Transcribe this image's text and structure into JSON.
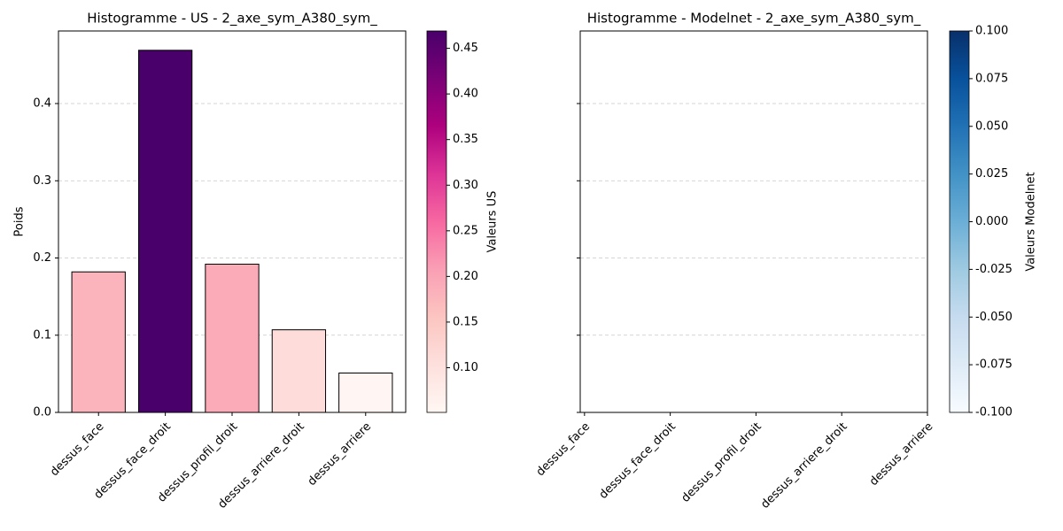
{
  "chart_data": [
    {
      "type": "bar",
      "title": "Histogramme - US - 2_axe_sym_A380_sym_",
      "ylabel": "Poids",
      "categories": [
        "dessus_face",
        "dessus_face_droit",
        "dessus_profil_droit",
        "dessus_arriere_droit",
        "dessus_arriere"
      ],
      "values": [
        0.182,
        0.469,
        0.192,
        0.107,
        0.051
      ],
      "colors": [
        "#fbb4bc",
        "#49006a",
        "#fbaab8",
        "#fddcd9",
        "#fff5f2"
      ],
      "xlim": [
        -0.6,
        4.6
      ],
      "ylim": [
        0,
        0.494
      ],
      "yticks": [
        {
          "value": 0,
          "label": "0.0"
        },
        0.1,
        0.2,
        0.3,
        0.4
      ],
      "grid": true,
      "colorbar": {
        "label": "Valeurs US",
        "lim": [
          0.051,
          0.469
        ],
        "ticks": [
          {
            "value": 0.1,
            "label": "0.10"
          },
          0.15,
          {
            "value": 0.2,
            "label": "0.20"
          },
          0.25,
          {
            "value": 0.3,
            "label": "0.30"
          },
          0.35,
          {
            "value": 0.4,
            "label": "0.40"
          },
          0.45
        ],
        "colormap": [
          "#fff7f3",
          "#fde0dd",
          "#fcc5c0",
          "#fa9fb5",
          "#f768a1",
          "#dd3497",
          "#ae017e",
          "#7a0177",
          "#49006a"
        ]
      }
    },
    {
      "type": "bar",
      "title": "Histogramme - Modelnet - 2_axe_sym_A380_sym_",
      "categories": [
        "dessus_face",
        "dessus_face_droit",
        "dessus_profil_droit",
        "dessus_arriere_droit",
        "dessus_arriere"
      ],
      "xlim": [
        -0.05,
        4.0
      ],
      "ylim": [
        0,
        0.494
      ],
      "yticks": [
        0,
        0.1,
        0.2,
        0.3,
        0.4
      ],
      "grid": true,
      "colorbar": {
        "label": "Valeurs Modelnet",
        "lim": [
          -0.1,
          0.1
        ],
        "ticks": [
          {
            "value": -0.1,
            "label": "-0.100"
          },
          {
            "value": -0.075,
            "label": "-0.075"
          },
          {
            "value": -0.05,
            "label": "-0.050"
          },
          {
            "value": -0.025,
            "label": "-0.025"
          },
          {
            "value": 0,
            "label": "0.000"
          },
          {
            "value": 0.025,
            "label": "0.025"
          },
          {
            "value": 0.05,
            "label": "0.050"
          },
          {
            "value": 0.075,
            "label": "0.075"
          },
          {
            "value": 0.1,
            "label": "0.100"
          }
        ],
        "colormap": [
          "#f7fbff",
          "#deebf7",
          "#c6dbef",
          "#9ecae1",
          "#6baed6",
          "#4292c6",
          "#2171b5",
          "#08519c",
          "#08306b"
        ]
      }
    }
  ]
}
